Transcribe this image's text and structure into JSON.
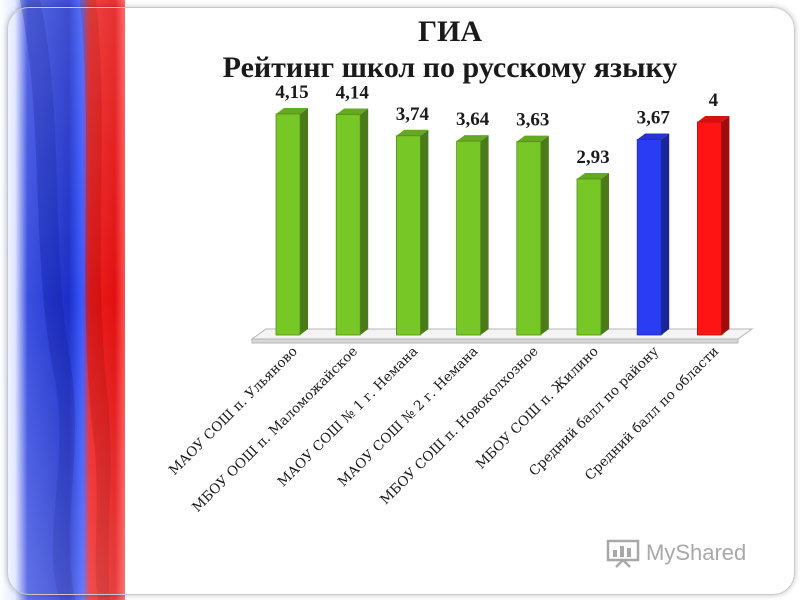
{
  "title": {
    "line1": "ГИА",
    "line2": "Рейтинг школ по русскому языку"
  },
  "watermark": {
    "text": "MyShared",
    "icon": "presentation-board-icon"
  },
  "colors": {
    "green": "#77c726",
    "blue": "#2b3cf5",
    "red": "#ff1414"
  },
  "chart_data": {
    "type": "bar",
    "categories": [
      "МАОУ СОШ п. Ульяново",
      "МБОУ ООШ п. Маломожайское",
      "МАОУ СОШ № 1 г. Немана",
      "МАОУ СОШ № 2 г. Немана",
      "МБОУ СОШ п. Новоколхозное",
      "МБОУ  СОШ п. Жилино",
      "Средний балл по району",
      "Средний балл по области"
    ],
    "values": [
      4.15,
      4.14,
      3.74,
      3.64,
      3.63,
      2.93,
      3.67,
      4
    ],
    "data_labels": [
      "4,15",
      "4,14",
      "3,74",
      "3,64",
      "3,63",
      "2,93",
      "3,67",
      "4"
    ],
    "bar_colors": [
      "green",
      "green",
      "green",
      "green",
      "green",
      "green",
      "blue",
      "red"
    ],
    "ylim": [
      0,
      4.6
    ],
    "grid": false,
    "legend": "none"
  }
}
